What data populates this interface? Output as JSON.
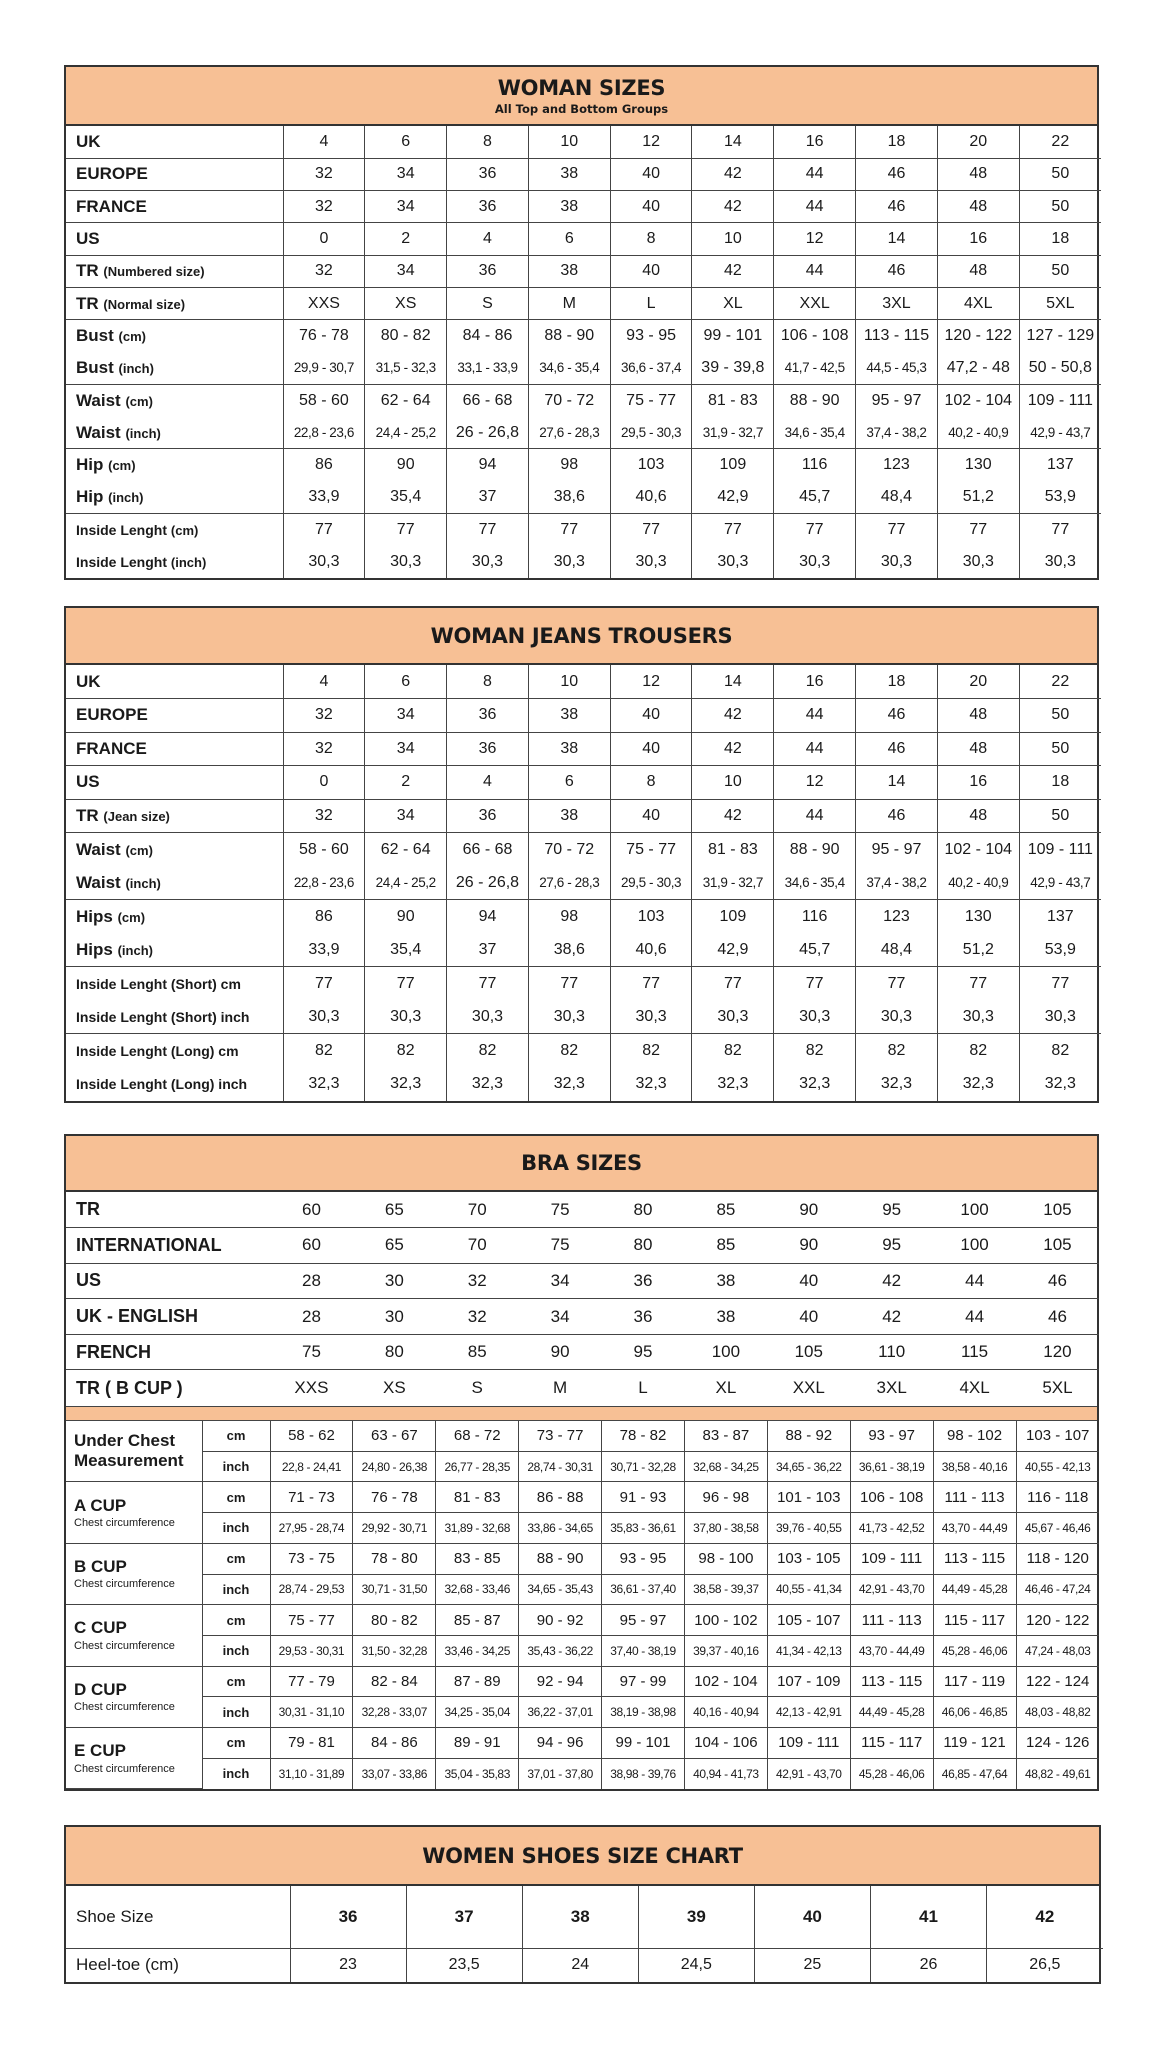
{
  "woman_sizes": {
    "title": "WOMAN SIZES",
    "subtitle": "All Top and Bottom Groups",
    "groups": [
      [
        {
          "label": "UK",
          "sub": "",
          "values": [
            "4",
            "6",
            "8",
            "10",
            "12",
            "14",
            "16",
            "18",
            "20",
            "22"
          ]
        }
      ],
      [
        {
          "label": "EUROPE",
          "sub": "",
          "values": [
            "32",
            "34",
            "36",
            "38",
            "40",
            "42",
            "44",
            "46",
            "48",
            "50"
          ]
        }
      ],
      [
        {
          "label": "FRANCE",
          "sub": "",
          "values": [
            "32",
            "34",
            "36",
            "38",
            "40",
            "42",
            "44",
            "46",
            "48",
            "50"
          ]
        }
      ],
      [
        {
          "label": "US",
          "sub": "",
          "values": [
            "0",
            "2",
            "4",
            "6",
            "8",
            "10",
            "12",
            "14",
            "16",
            "18"
          ]
        }
      ],
      [
        {
          "label": "TR",
          "sub": "(Numbered size)",
          "values": [
            "32",
            "34",
            "36",
            "38",
            "40",
            "42",
            "44",
            "46",
            "48",
            "50"
          ]
        }
      ],
      [
        {
          "label": "TR",
          "sub": "(Normal size)",
          "values": [
            "XXS",
            "XS",
            "S",
            "M",
            "L",
            "XL",
            "XXL",
            "3XL",
            "4XL",
            "5XL"
          ]
        }
      ],
      [
        {
          "label": "Bust",
          "sub": "(cm)",
          "values": [
            "76 - 78",
            "80 - 82",
            "84 - 86",
            "88 - 90",
            "93 - 95",
            "99 - 101",
            "106 - 108",
            "113 - 115",
            "120 - 122",
            "127 - 129"
          ]
        },
        {
          "label": "Bust",
          "sub": "(inch)",
          "values": [
            "29,9 - 30,7",
            "31,5 - 32,3",
            "33,1 - 33,9",
            "34,6 - 35,4",
            "36,6 - 37,4",
            "39 - 39,8",
            "41,7 - 42,5",
            "44,5 - 45,3",
            "47,2 - 48",
            "50 - 50,8"
          ]
        }
      ],
      [
        {
          "label": "Waist",
          "sub": "(cm)",
          "values": [
            "58 - 60",
            "62 - 64",
            "66 - 68",
            "70 - 72",
            "75 - 77",
            "81 - 83",
            "88 - 90",
            "95 - 97",
            "102 - 104",
            "109 - 111"
          ]
        },
        {
          "label": "Waist",
          "sub": "(inch)",
          "values": [
            "22,8 - 23,6",
            "24,4 - 25,2",
            "26 - 26,8",
            "27,6 - 28,3",
            "29,5 - 30,3",
            "31,9 - 32,7",
            "34,6 - 35,4",
            "37,4 - 38,2",
            "40,2 - 40,9",
            "42,9 - 43,7"
          ]
        }
      ],
      [
        {
          "label": "Hip",
          "sub": "(cm)",
          "values": [
            "86",
            "90",
            "94",
            "98",
            "103",
            "109",
            "116",
            "123",
            "130",
            "137"
          ]
        },
        {
          "label": "Hip",
          "sub": "(inch)",
          "values": [
            "33,9",
            "35,4",
            "37",
            "38,6",
            "40,6",
            "42,9",
            "45,7",
            "48,4",
            "51,2",
            "53,9"
          ]
        }
      ],
      [
        {
          "label": "Inside Lenght",
          "sub": "(cm)",
          "values": [
            "77",
            "77",
            "77",
            "77",
            "77",
            "77",
            "77",
            "77",
            "77",
            "77"
          ]
        },
        {
          "label": "Inside Lenght",
          "sub": "(inch)",
          "values": [
            "30,3",
            "30,3",
            "30,3",
            "30,3",
            "30,3",
            "30,3",
            "30,3",
            "30,3",
            "30,3",
            "30,3"
          ]
        }
      ]
    ]
  },
  "woman_jeans": {
    "title": "WOMAN JEANS TROUSERS",
    "groups": [
      [
        {
          "label": "UK",
          "sub": "",
          "values": [
            "4",
            "6",
            "8",
            "10",
            "12",
            "14",
            "16",
            "18",
            "20",
            "22"
          ]
        }
      ],
      [
        {
          "label": "EUROPE",
          "sub": "",
          "values": [
            "32",
            "34",
            "36",
            "38",
            "40",
            "42",
            "44",
            "46",
            "48",
            "50"
          ]
        }
      ],
      [
        {
          "label": "FRANCE",
          "sub": "",
          "values": [
            "32",
            "34",
            "36",
            "38",
            "40",
            "42",
            "44",
            "46",
            "48",
            "50"
          ]
        }
      ],
      [
        {
          "label": "US",
          "sub": "",
          "values": [
            "0",
            "2",
            "4",
            "6",
            "8",
            "10",
            "12",
            "14",
            "16",
            "18"
          ]
        }
      ],
      [
        {
          "label": "TR",
          "sub": "(Jean size)",
          "values": [
            "32",
            "34",
            "36",
            "38",
            "40",
            "42",
            "44",
            "46",
            "48",
            "50"
          ]
        }
      ],
      [
        {
          "label": "Waist",
          "sub": "(cm)",
          "values": [
            "58 - 60",
            "62 - 64",
            "66 - 68",
            "70 - 72",
            "75 - 77",
            "81 - 83",
            "88 - 90",
            "95 - 97",
            "102 - 104",
            "109 - 111"
          ]
        },
        {
          "label": "Waist",
          "sub": "(inch)",
          "values": [
            "22,8 - 23,6",
            "24,4 - 25,2",
            "26 - 26,8",
            "27,6 - 28,3",
            "29,5 - 30,3",
            "31,9 - 32,7",
            "34,6 - 35,4",
            "37,4 - 38,2",
            "40,2 - 40,9",
            "42,9 - 43,7"
          ]
        }
      ],
      [
        {
          "label": "Hips",
          "sub": "(cm)",
          "values": [
            "86",
            "90",
            "94",
            "98",
            "103",
            "109",
            "116",
            "123",
            "130",
            "137"
          ]
        },
        {
          "label": "Hips",
          "sub": "(inch)",
          "values": [
            "33,9",
            "35,4",
            "37",
            "38,6",
            "40,6",
            "42,9",
            "45,7",
            "48,4",
            "51,2",
            "53,9"
          ]
        }
      ],
      [
        {
          "label": "Inside Lenght (Short) cm",
          "sub": "",
          "values": [
            "77",
            "77",
            "77",
            "77",
            "77",
            "77",
            "77",
            "77",
            "77",
            "77"
          ]
        },
        {
          "label": "Inside Lenght (Short) inch",
          "sub": "",
          "values": [
            "30,3",
            "30,3",
            "30,3",
            "30,3",
            "30,3",
            "30,3",
            "30,3",
            "30,3",
            "30,3",
            "30,3"
          ]
        }
      ],
      [
        {
          "label": "Inside Lenght (Long) cm",
          "sub": "",
          "values": [
            "82",
            "82",
            "82",
            "82",
            "82",
            "82",
            "82",
            "82",
            "82",
            "82"
          ]
        },
        {
          "label": "Inside Lenght (Long) inch",
          "sub": "",
          "values": [
            "32,3",
            "32,3",
            "32,3",
            "32,3",
            "32,3",
            "32,3",
            "32,3",
            "32,3",
            "32,3",
            "32,3"
          ]
        }
      ]
    ]
  },
  "bra_sizes": {
    "title": "BRA SIZES",
    "size_rows": [
      {
        "label": "TR",
        "values": [
          "60",
          "65",
          "70",
          "75",
          "80",
          "85",
          "90",
          "95",
          "100",
          "105"
        ]
      },
      {
        "label": "INTERNATIONAL",
        "values": [
          "60",
          "65",
          "70",
          "75",
          "80",
          "85",
          "90",
          "95",
          "100",
          "105"
        ]
      },
      {
        "label": "US",
        "values": [
          "28",
          "30",
          "32",
          "34",
          "36",
          "38",
          "40",
          "42",
          "44",
          "46"
        ]
      },
      {
        "label": "UK - ENGLISH",
        "values": [
          "28",
          "30",
          "32",
          "34",
          "36",
          "38",
          "40",
          "42",
          "44",
          "46"
        ]
      },
      {
        "label": "FRENCH",
        "values": [
          "75",
          "80",
          "85",
          "90",
          "95",
          "100",
          "105",
          "110",
          "115",
          "120"
        ]
      },
      {
        "label": "TR ( B CUP )",
        "values": [
          "XXS",
          "XS",
          "S",
          "M",
          "L",
          "XL",
          "XXL",
          "3XL",
          "4XL",
          "5XL"
        ]
      }
    ],
    "cups": [
      {
        "label": "Under Chest Measurement",
        "sub": "",
        "rows": [
          {
            "unit": "cm",
            "values": [
              "58 - 62",
              "63 - 67",
              "68 - 72",
              "73 - 77",
              "78 - 82",
              "83 - 87",
              "88 - 92",
              "93 - 97",
              "98 - 102",
              "103 - 107"
            ]
          },
          {
            "unit": "inch",
            "values": [
              "22,8 - 24,41",
              "24,80 - 26,38",
              "26,77 - 28,35",
              "28,74 - 30,31",
              "30,71 - 32,28",
              "32,68 - 34,25",
              "34,65 - 36,22",
              "36,61 - 38,19",
              "38,58 - 40,16",
              "40,55 - 42,13"
            ]
          }
        ]
      },
      {
        "label": "A CUP",
        "sub": "Chest circumference",
        "rows": [
          {
            "unit": "cm",
            "values": [
              "71 - 73",
              "76 - 78",
              "81 - 83",
              "86 - 88",
              "91 - 93",
              "96 - 98",
              "101 - 103",
              "106 - 108",
              "111 - 113",
              "116 - 118"
            ]
          },
          {
            "unit": "inch",
            "values": [
              "27,95 - 28,74",
              "29,92 - 30,71",
              "31,89 - 32,68",
              "33,86 - 34,65",
              "35,83 - 36,61",
              "37,80 - 38,58",
              "39,76 - 40,55",
              "41,73 - 42,52",
              "43,70 - 44,49",
              "45,67 - 46,46"
            ]
          }
        ]
      },
      {
        "label": "B CUP",
        "sub": "Chest circumference",
        "rows": [
          {
            "unit": "cm",
            "values": [
              "73 - 75",
              "78 - 80",
              "83 - 85",
              "88 - 90",
              "93 - 95",
              "98 - 100",
              "103 - 105",
              "109 - 111",
              "113 - 115",
              "118 - 120"
            ]
          },
          {
            "unit": "inch",
            "values": [
              "28,74 - 29,53",
              "30,71 - 31,50",
              "32,68 - 33,46",
              "34,65 - 35,43",
              "36,61 - 37,40",
              "38,58 - 39,37",
              "40,55 - 41,34",
              "42,91 - 43,70",
              "44,49 - 45,28",
              "46,46 - 47,24"
            ]
          }
        ]
      },
      {
        "label": "C CUP",
        "sub": "Chest circumference",
        "rows": [
          {
            "unit": "cm",
            "values": [
              "75 - 77",
              "80 - 82",
              "85 - 87",
              "90 - 92",
              "95 - 97",
              "100 - 102",
              "105 - 107",
              "111 - 113",
              "115 - 117",
              "120 - 122"
            ]
          },
          {
            "unit": "inch",
            "values": [
              "29,53 - 30,31",
              "31,50 - 32,28",
              "33,46 - 34,25",
              "35,43 - 36,22",
              "37,40 - 38,19",
              "39,37 - 40,16",
              "41,34 - 42,13",
              "43,70 - 44,49",
              "45,28 - 46,06",
              "47,24 - 48,03"
            ]
          }
        ]
      },
      {
        "label": "D CUP",
        "sub": "Chest circumference",
        "rows": [
          {
            "unit": "cm",
            "values": [
              "77 - 79",
              "82 - 84",
              "87 - 89",
              "92 - 94",
              "97 - 99",
              "102 - 104",
              "107 - 109",
              "113 - 115",
              "117 - 119",
              "122 - 124"
            ]
          },
          {
            "unit": "inch",
            "values": [
              "30,31 - 31,10",
              "32,28 - 33,07",
              "34,25 - 35,04",
              "36,22 - 37,01",
              "38,19 - 38,98",
              "40,16 - 40,94",
              "42,13 - 42,91",
              "44,49 - 45,28",
              "46,06 - 46,85",
              "48,03 - 48,82"
            ]
          }
        ]
      },
      {
        "label": "E CUP",
        "sub": "Chest circumference",
        "rows": [
          {
            "unit": "cm",
            "values": [
              "79 - 81",
              "84 - 86",
              "89 - 91",
              "94 - 96",
              "99 - 101",
              "104 - 106",
              "109 - 111",
              "115 - 117",
              "119 - 121",
              "124 - 126"
            ]
          },
          {
            "unit": "inch",
            "values": [
              "31,10 - 31,89",
              "33,07 - 33,86",
              "35,04 - 35,83",
              "37,01 - 37,80",
              "38,98 - 39,76",
              "40,94 - 41,73",
              "42,91 - 43,70",
              "45,28 - 46,06",
              "46,85 - 47,64",
              "48,82 - 49,61"
            ]
          }
        ]
      }
    ]
  },
  "women_shoes": {
    "title": "WOMEN SHOES SIZE CHART",
    "rows": [
      {
        "label": "Shoe Size",
        "values": [
          "36",
          "37",
          "38",
          "39",
          "40",
          "41",
          "42"
        ]
      },
      {
        "label": "Heel-toe (cm)",
        "values": [
          "23",
          "23,5",
          "24",
          "24,5",
          "25",
          "26",
          "26,5"
        ]
      }
    ]
  },
  "colors": {
    "header_fill": "#f7c095",
    "border": "#333333"
  }
}
